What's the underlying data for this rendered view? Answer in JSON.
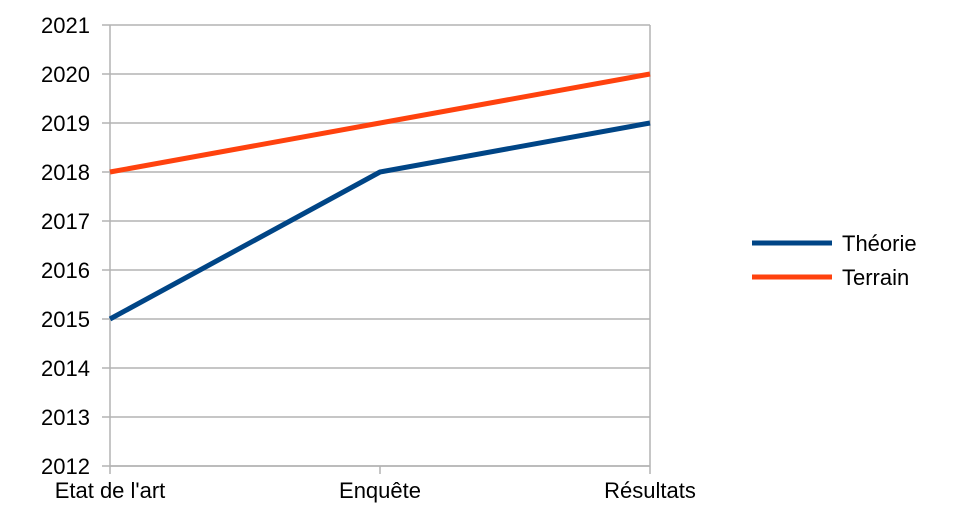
{
  "chart_data": {
    "type": "line",
    "title": "",
    "xlabel": "",
    "ylabel": "",
    "categories": [
      "Etat de l'art",
      "Enquête",
      "Résultats"
    ],
    "ylim": [
      2012,
      2021
    ],
    "yticks": [
      2012,
      2013,
      2014,
      2015,
      2016,
      2017,
      2018,
      2019,
      2020,
      2021
    ],
    "grid": true,
    "legend_position": "right",
    "series": [
      {
        "name": "Théorie",
        "values": [
          2015,
          2018,
          2019
        ],
        "color": "#004586"
      },
      {
        "name": "Terrain",
        "values": [
          2018,
          2019,
          2020
        ],
        "color": "#ff420e"
      }
    ]
  }
}
